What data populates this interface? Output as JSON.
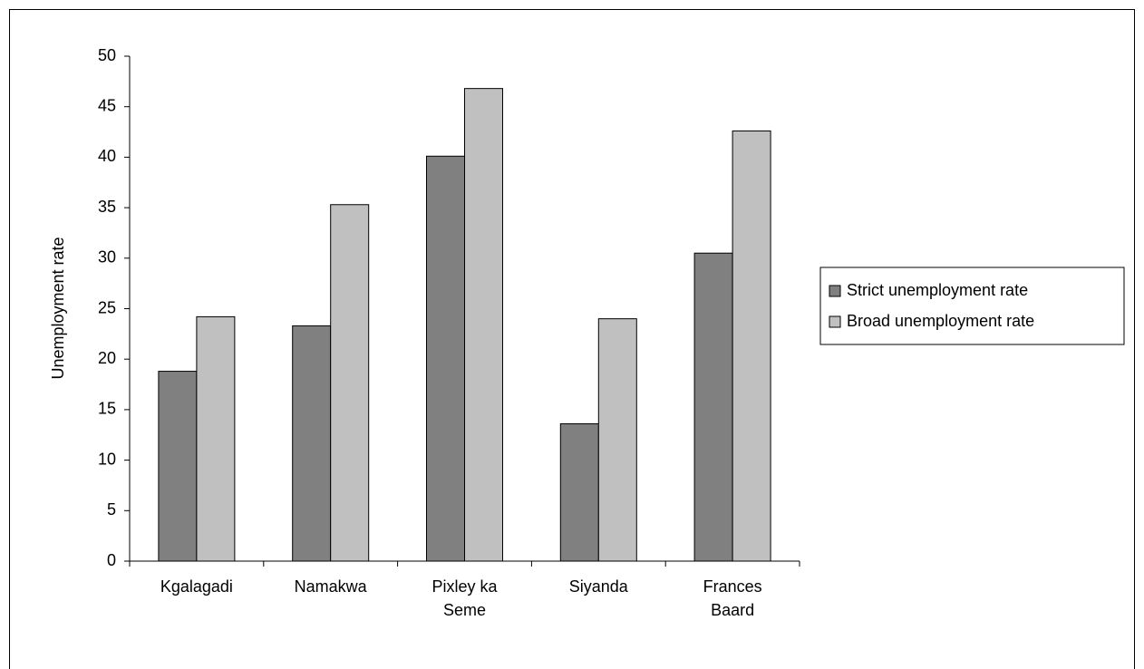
{
  "chart_data": {
    "type": "bar",
    "y_label": "Unemployment rate",
    "categories": [
      "Kgalagadi",
      "Namakwa",
      "Pixley ka Seme",
      "Siyanda",
      "Frances Baard"
    ],
    "series": [
      {
        "name": "Strict unemployment rate",
        "color": "#808080",
        "values": [
          18.8,
          23.3,
          40.1,
          13.6,
          30.5
        ]
      },
      {
        "name": "Broad unemployment rate",
        "color": "#c0c0c0",
        "values": [
          24.2,
          35.3,
          46.8,
          24.0,
          42.6
        ]
      }
    ],
    "ylim": [
      0,
      50
    ],
    "yticks": [
      0,
      5,
      10,
      15,
      20,
      25,
      30,
      35,
      40,
      45,
      50
    ],
    "grid": false,
    "legend": "right"
  }
}
